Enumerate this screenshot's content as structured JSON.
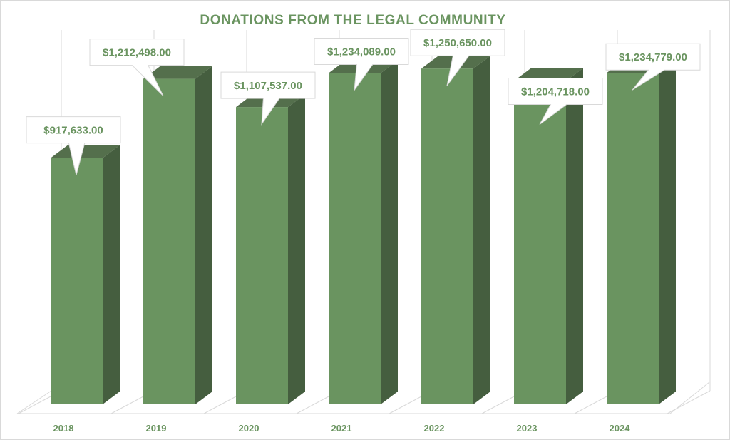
{
  "chart_data": {
    "type": "bar",
    "title": "DONATIONS FROM THE LEGAL COMMUNITY",
    "categories": [
      "2018",
      "2019",
      "2020",
      "2021",
      "2022",
      "2023",
      "2024"
    ],
    "values": [
      917633.0,
      1212498.0,
      1107537.0,
      1234089.0,
      1250650.0,
      1204718.0,
      1234779.0
    ],
    "data_labels": [
      "$917,633.00",
      "$1,212,498.00",
      "$1,107,537.00",
      "$1,234,089.00",
      "$1,250,650.00",
      "$1,204,718.00",
      "$1,234,779.00"
    ],
    "ylim": [
      0,
      1400000
    ],
    "grid": true,
    "legend": "none",
    "three_d": true,
    "colors": {
      "front": "#6a9460",
      "side": "#455e3f",
      "top": "#546f4c",
      "text": "#6a9460",
      "grid": "#d9d9d9"
    }
  }
}
